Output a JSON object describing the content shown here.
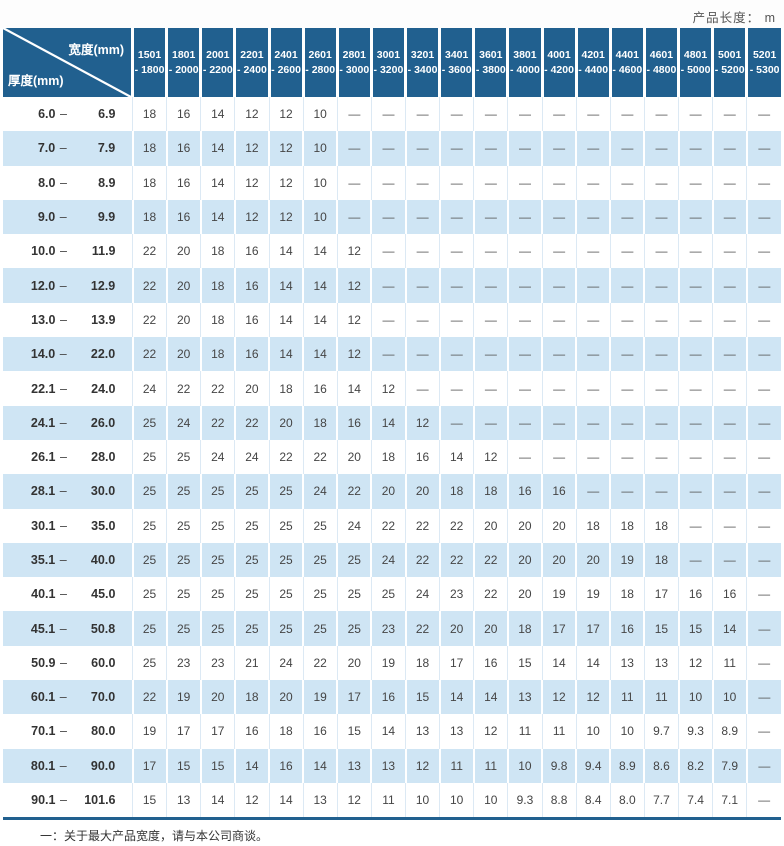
{
  "page": {
    "top_right_label": "产品长度： m",
    "footnote": "一：关于最大产品宽度，请与本公司商谈。"
  },
  "colors": {
    "header_blue": "#21608f",
    "row_blue": "#cfe5f4",
    "bottom_rule": "#21608f"
  },
  "table": {
    "corner": {
      "width_label": "宽度(mm)",
      "thickness_label": "厚度(mm)"
    },
    "columns": [
      [
        "1501",
        "- 1800"
      ],
      [
        "1801",
        "- 2000"
      ],
      [
        "2001",
        "- 2200"
      ],
      [
        "2201",
        "- 2400"
      ],
      [
        "2401",
        "- 2600"
      ],
      [
        "2601",
        "- 2800"
      ],
      [
        "2801",
        "- 3000"
      ],
      [
        "3001",
        "- 3200"
      ],
      [
        "3201",
        "- 3400"
      ],
      [
        "3401",
        "- 3600"
      ],
      [
        "3601",
        "- 3800"
      ],
      [
        "3801",
        "- 4000"
      ],
      [
        "4001",
        "- 4200"
      ],
      [
        "4201",
        "- 4400"
      ],
      [
        "4401",
        "- 4600"
      ],
      [
        "4601",
        "- 4800"
      ],
      [
        "4801",
        "- 5000"
      ],
      [
        "5001",
        "- 5200"
      ],
      [
        "5201",
        "- 5300"
      ]
    ],
    "rows": [
      {
        "min": "6.0",
        "max": "6.9",
        "values": [
          "18",
          "16",
          "14",
          "12",
          "12",
          "10",
          "—",
          "—",
          "—",
          "—",
          "—",
          "—",
          "—",
          "—",
          "—",
          "—",
          "—",
          "—",
          "—"
        ]
      },
      {
        "min": "7.0",
        "max": "7.9",
        "values": [
          "18",
          "16",
          "14",
          "12",
          "12",
          "10",
          "—",
          "—",
          "—",
          "—",
          "—",
          "—",
          "—",
          "—",
          "—",
          "—",
          "—",
          "—",
          "—"
        ]
      },
      {
        "min": "8.0",
        "max": "8.9",
        "values": [
          "18",
          "16",
          "14",
          "12",
          "12",
          "10",
          "—",
          "—",
          "—",
          "—",
          "—",
          "—",
          "—",
          "—",
          "—",
          "—",
          "—",
          "—",
          "—"
        ]
      },
      {
        "min": "9.0",
        "max": "9.9",
        "values": [
          "18",
          "16",
          "14",
          "12",
          "12",
          "10",
          "—",
          "—",
          "—",
          "—",
          "—",
          "—",
          "—",
          "—",
          "—",
          "—",
          "—",
          "—",
          "—"
        ]
      },
      {
        "min": "10.0",
        "max": "11.9",
        "values": [
          "22",
          "20",
          "18",
          "16",
          "14",
          "14",
          "12",
          "—",
          "—",
          "—",
          "—",
          "—",
          "—",
          "—",
          "—",
          "—",
          "—",
          "—",
          "—"
        ]
      },
      {
        "min": "12.0",
        "max": "12.9",
        "values": [
          "22",
          "20",
          "18",
          "16",
          "14",
          "14",
          "12",
          "—",
          "—",
          "—",
          "—",
          "—",
          "—",
          "—",
          "—",
          "—",
          "—",
          "—",
          "—"
        ]
      },
      {
        "min": "13.0",
        "max": "13.9",
        "values": [
          "22",
          "20",
          "18",
          "16",
          "14",
          "14",
          "12",
          "—",
          "—",
          "—",
          "—",
          "—",
          "—",
          "—",
          "—",
          "—",
          "—",
          "—",
          "—"
        ]
      },
      {
        "min": "14.0",
        "max": "22.0",
        "values": [
          "22",
          "20",
          "18",
          "16",
          "14",
          "14",
          "12",
          "—",
          "—",
          "—",
          "—",
          "—",
          "—",
          "—",
          "—",
          "—",
          "—",
          "—",
          "—"
        ]
      },
      {
        "min": "22.1",
        "max": "24.0",
        "values": [
          "24",
          "22",
          "22",
          "20",
          "18",
          "16",
          "14",
          "12",
          "—",
          "—",
          "—",
          "—",
          "—",
          "—",
          "—",
          "—",
          "—",
          "—",
          "—"
        ]
      },
      {
        "min": "24.1",
        "max": "26.0",
        "values": [
          "25",
          "24",
          "22",
          "22",
          "20",
          "18",
          "16",
          "14",
          "12",
          "—",
          "—",
          "—",
          "—",
          "—",
          "—",
          "—",
          "—",
          "—",
          "—"
        ]
      },
      {
        "min": "26.1",
        "max": "28.0",
        "values": [
          "25",
          "25",
          "24",
          "24",
          "22",
          "22",
          "20",
          "18",
          "16",
          "14",
          "12",
          "—",
          "—",
          "—",
          "—",
          "—",
          "—",
          "—",
          "—"
        ]
      },
      {
        "min": "28.1",
        "max": "30.0",
        "values": [
          "25",
          "25",
          "25",
          "25",
          "25",
          "24",
          "22",
          "20",
          "20",
          "18",
          "18",
          "16",
          "16",
          "—",
          "—",
          "—",
          "—",
          "—",
          "—"
        ]
      },
      {
        "min": "30.1",
        "max": "35.0",
        "values": [
          "25",
          "25",
          "25",
          "25",
          "25",
          "25",
          "24",
          "22",
          "22",
          "22",
          "20",
          "20",
          "20",
          "18",
          "18",
          "18",
          "—",
          "—",
          "—"
        ]
      },
      {
        "min": "35.1",
        "max": "40.0",
        "values": [
          "25",
          "25",
          "25",
          "25",
          "25",
          "25",
          "25",
          "24",
          "22",
          "22",
          "22",
          "20",
          "20",
          "20",
          "19",
          "18",
          "—",
          "—",
          "—"
        ]
      },
      {
        "min": "40.1",
        "max": "45.0",
        "values": [
          "25",
          "25",
          "25",
          "25",
          "25",
          "25",
          "25",
          "25",
          "24",
          "23",
          "22",
          "20",
          "19",
          "19",
          "18",
          "17",
          "16",
          "16",
          "—"
        ]
      },
      {
        "min": "45.1",
        "max": "50.8",
        "values": [
          "25",
          "25",
          "25",
          "25",
          "25",
          "25",
          "25",
          "23",
          "22",
          "20",
          "20",
          "18",
          "17",
          "17",
          "16",
          "15",
          "15",
          "14",
          "—"
        ]
      },
      {
        "min": "50.9",
        "max": "60.0",
        "values": [
          "25",
          "23",
          "23",
          "21",
          "24",
          "22",
          "20",
          "19",
          "18",
          "17",
          "16",
          "15",
          "14",
          "14",
          "13",
          "13",
          "12",
          "11",
          "—"
        ]
      },
      {
        "min": "60.1",
        "max": "70.0",
        "values": [
          "22",
          "19",
          "20",
          "18",
          "20",
          "19",
          "17",
          "16",
          "15",
          "14",
          "14",
          "13",
          "12",
          "12",
          "11",
          "11",
          "10",
          "10",
          "—"
        ]
      },
      {
        "min": "70.1",
        "max": "80.0",
        "values": [
          "19",
          "17",
          "17",
          "16",
          "18",
          "16",
          "15",
          "14",
          "13",
          "13",
          "12",
          "11",
          "11",
          "10",
          "10",
          "9.7",
          "9.3",
          "8.9",
          "—"
        ]
      },
      {
        "min": "80.1",
        "max": "90.0",
        "values": [
          "17",
          "15",
          "15",
          "14",
          "16",
          "14",
          "13",
          "13",
          "12",
          "11",
          "11",
          "10",
          "9.8",
          "9.4",
          "8.9",
          "8.6",
          "8.2",
          "7.9",
          "—"
        ]
      },
      {
        "min": "90.1",
        "max": "101.6",
        "values": [
          "15",
          "13",
          "14",
          "12",
          "14",
          "13",
          "12",
          "11",
          "10",
          "10",
          "10",
          "9.3",
          "8.8",
          "8.4",
          "8.0",
          "7.7",
          "7.4",
          "7.1",
          "—"
        ]
      }
    ]
  }
}
